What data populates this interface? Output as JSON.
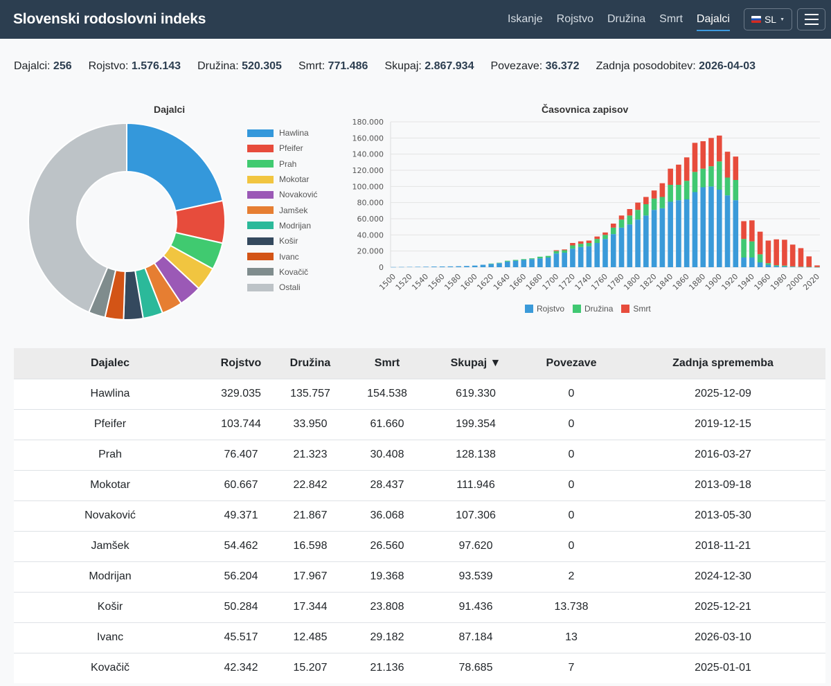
{
  "brand": "Slovenski rodoslovni indeks",
  "nav": [
    "Iskanje",
    "Rojstvo",
    "Družina",
    "Smrt",
    "Dajalci"
  ],
  "nav_active": "Dajalci",
  "lang": "SL",
  "stats": [
    {
      "label": "Dajalci:",
      "value": "256"
    },
    {
      "label": "Rojstvo:",
      "value": "1.576.143"
    },
    {
      "label": "Družina:",
      "value": "520.305"
    },
    {
      "label": "Smrt:",
      "value": "771.486"
    },
    {
      "label": "Skupaj:",
      "value": "2.867.934"
    },
    {
      "label": "Povezave:",
      "value": "36.372"
    },
    {
      "label": "Zadnja posodobitev:",
      "value": "2026-04-03"
    }
  ],
  "colors": {
    "Hawlina": "#3498db",
    "Pfeifer": "#e74c3c",
    "Prah": "#40ca70",
    "Mokotar": "#f1c540",
    "Novaković": "#9b59b6",
    "Jamšek": "#e67e32",
    "Modrijan": "#2bb99a",
    "Košir": "#34495e",
    "Ivanc": "#d35416",
    "Kovačič": "#7f8c8d",
    "Ostali": "#bdc3c7",
    "rojstvo": "#3a9ad9",
    "druzina": "#40c872",
    "smrt": "#e74c3c"
  },
  "chart_data": [
    {
      "type": "pie",
      "title": "Dajalci",
      "labels": [
        "Hawlina",
        "Pfeifer",
        "Prah",
        "Mokotar",
        "Novaković",
        "Jamšek",
        "Modrijan",
        "Košir",
        "Ivanc",
        "Kovačič",
        "Ostali"
      ],
      "values": [
        619330,
        199354,
        128138,
        111946,
        107306,
        97620,
        93539,
        91436,
        87184,
        78685,
        1253396
      ],
      "legend": "right"
    },
    {
      "type": "bar",
      "title": "Časovnica zapisov",
      "stacked": true,
      "x": [
        1500,
        1510,
        1520,
        1530,
        1540,
        1550,
        1560,
        1570,
        1580,
        1590,
        1600,
        1610,
        1620,
        1630,
        1640,
        1650,
        1660,
        1670,
        1680,
        1690,
        1700,
        1710,
        1720,
        1730,
        1740,
        1750,
        1760,
        1770,
        1780,
        1790,
        1800,
        1810,
        1820,
        1830,
        1840,
        1850,
        1860,
        1870,
        1880,
        1890,
        1900,
        1910,
        1920,
        1930,
        1940,
        1950,
        1960,
        1970,
        1980,
        1990,
        2000,
        2010,
        2020
      ],
      "xticks": [
        1500,
        1520,
        1540,
        1560,
        1580,
        1600,
        1620,
        1640,
        1660,
        1680,
        1700,
        1720,
        1740,
        1760,
        1780,
        1800,
        1820,
        1840,
        1860,
        1880,
        1900,
        1920,
        1940,
        1960,
        1980,
        2000,
        2020
      ],
      "yticks": [
        "0",
        "20.000",
        "40.000",
        "60.000",
        "80.000",
        "100.000",
        "120.000",
        "140.000",
        "160.000",
        "180.000"
      ],
      "ylim": [
        0,
        180000
      ],
      "legend": "bottom",
      "series": [
        {
          "name": "Rojstvo",
          "values": [
            200,
            300,
            400,
            500,
            600,
            800,
            900,
            1000,
            1200,
            1500,
            2000,
            3000,
            4000,
            5000,
            7000,
            8000,
            9000,
            10000,
            11000,
            12000,
            17000,
            18000,
            23000,
            25000,
            26000,
            30000,
            35000,
            41000,
            49000,
            53000,
            59000,
            64000,
            71000,
            73000,
            81000,
            83000,
            84000,
            93000,
            99000,
            100000,
            96000,
            89000,
            83000,
            12000,
            12000,
            6000,
            3000,
            1500,
            1000,
            500,
            300,
            200,
            100
          ]
        },
        {
          "name": "Družina",
          "values": [
            0,
            0,
            0,
            0,
            0,
            0,
            0,
            0,
            0,
            0,
            0,
            0,
            500,
            500,
            1000,
            1000,
            1000,
            1000,
            2000,
            2000,
            3000,
            3000,
            4000,
            4000,
            4000,
            5000,
            5000,
            8000,
            10000,
            11000,
            12000,
            14000,
            14000,
            14000,
            21000,
            19000,
            23000,
            25000,
            23000,
            25000,
            35000,
            22000,
            25000,
            23000,
            20000,
            10000,
            2000,
            1000,
            1000,
            500,
            300,
            200,
            100
          ]
        },
        {
          "name": "Smrt",
          "values": [
            0,
            0,
            0,
            0,
            0,
            0,
            0,
            0,
            0,
            0,
            0,
            0,
            0,
            0,
            0,
            0,
            0,
            0,
            0,
            0,
            1000,
            1000,
            3000,
            3000,
            3000,
            3000,
            3000,
            5000,
            5000,
            8000,
            9000,
            9000,
            10000,
            17000,
            20000,
            25000,
            29000,
            36000,
            34000,
            35000,
            32000,
            32000,
            29000,
            22000,
            26000,
            28000,
            28000,
            32000,
            32000,
            27000,
            23000,
            13000,
            2000
          ]
        }
      ]
    }
  ],
  "table": {
    "headers": [
      "Dajalec",
      "Rojstvo",
      "Družina",
      "Smrt",
      "Skupaj ▼",
      "Povezave",
      "Zadnja sprememba"
    ],
    "rows": [
      [
        "Hawlina",
        "329.035",
        "135.757",
        "154.538",
        "619.330",
        "0",
        "2025-12-09"
      ],
      [
        "Pfeifer",
        "103.744",
        "33.950",
        "61.660",
        "199.354",
        "0",
        "2019-12-15"
      ],
      [
        "Prah",
        "76.407",
        "21.323",
        "30.408",
        "128.138",
        "0",
        "2016-03-27"
      ],
      [
        "Mokotar",
        "60.667",
        "22.842",
        "28.437",
        "111.946",
        "0",
        "2013-09-18"
      ],
      [
        "Novaković",
        "49.371",
        "21.867",
        "36.068",
        "107.306",
        "0",
        "2013-05-30"
      ],
      [
        "Jamšek",
        "54.462",
        "16.598",
        "26.560",
        "97.620",
        "0",
        "2018-11-21"
      ],
      [
        "Modrijan",
        "56.204",
        "17.967",
        "19.368",
        "93.539",
        "2",
        "2024-12-30"
      ],
      [
        "Košir",
        "50.284",
        "17.344",
        "23.808",
        "91.436",
        "13.738",
        "2025-12-21"
      ],
      [
        "Ivanc",
        "45.517",
        "12.485",
        "29.182",
        "87.184",
        "13",
        "2026-03-10"
      ],
      [
        "Kovačič",
        "42.342",
        "15.207",
        "21.136",
        "78.685",
        "7",
        "2025-01-01"
      ]
    ]
  }
}
